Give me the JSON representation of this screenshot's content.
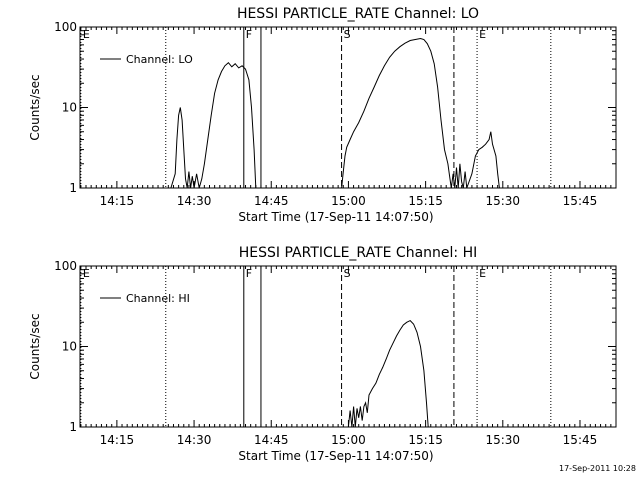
{
  "chart_data": [
    {
      "type": "line",
      "title": "HESSI PARTICLE_RATE Channel: LO",
      "xlabel": "Start Time (17-Sep-11 14:07:50)",
      "ylabel": "Counts/sec",
      "yscale": "log",
      "ylim": [
        1,
        100
      ],
      "xlim": [
        "14:07:50",
        "15:52:00"
      ],
      "xticks": [
        "14:15",
        "14:30",
        "14:45",
        "15:00",
        "15:15",
        "15:30",
        "15:45"
      ],
      "yticks": [
        "1",
        "10",
        "100"
      ],
      "grid": false,
      "legend": {
        "position": "top-left",
        "entries": [
          "Channel: LO"
        ]
      },
      "markers": [
        {
          "time": "14:08:00",
          "label": "E",
          "style": "dotted"
        },
        {
          "time": "14:24:30",
          "label": "",
          "style": "dotted"
        },
        {
          "time": "14:39:40",
          "label": "F",
          "style": "solid"
        },
        {
          "time": "14:43:00",
          "label": "",
          "style": "solid"
        },
        {
          "time": "14:58:40",
          "label": "S",
          "style": "dashed"
        },
        {
          "time": "15:20:30",
          "label": "",
          "style": "dashed"
        },
        {
          "time": "15:25:00",
          "label": "E",
          "style": "dotted"
        },
        {
          "time": "15:39:20",
          "label": "",
          "style": "dotted"
        }
      ],
      "series": [
        {
          "name": "Channel: LO",
          "segments": [
            [
              [
                "14:25:30",
                1
              ],
              [
                "14:26:20",
                1.5
              ],
              [
                "14:26:40",
                4
              ],
              [
                "14:27:00",
                8
              ],
              [
                "14:27:20",
                10
              ],
              [
                "14:27:40",
                7
              ],
              [
                "14:28:00",
                3
              ],
              [
                "14:28:20",
                1.3
              ],
              [
                "14:28:40",
                1
              ],
              [
                "14:29:00",
                1.6
              ],
              [
                "14:29:20",
                1
              ],
              [
                "14:29:40",
                1.4
              ],
              [
                "14:30:00",
                1
              ],
              [
                "14:30:30",
                1.5
              ],
              [
                "14:31:00",
                1
              ],
              [
                "14:31:30",
                1.3
              ],
              [
                "14:32:00",
                2
              ],
              [
                "14:32:40",
                4
              ],
              [
                "14:33:20",
                8
              ],
              [
                "14:34:00",
                15
              ],
              [
                "14:34:40",
                22
              ],
              [
                "14:35:20",
                28
              ],
              [
                "14:36:00",
                33
              ],
              [
                "14:36:40",
                36
              ],
              [
                "14:37:20",
                32
              ],
              [
                "14:38:00",
                35
              ],
              [
                "14:38:40",
                31
              ],
              [
                "14:39:20",
                33
              ],
              [
                "14:40:00",
                30
              ],
              [
                "14:40:40",
                22
              ],
              [
                "14:41:10",
                10
              ],
              [
                "14:41:40",
                3
              ],
              [
                "14:42:00",
                1
              ]
            ],
            [
              [
                "14:58:40",
                1
              ],
              [
                "14:59:00",
                1.6
              ],
              [
                "14:59:20",
                2.5
              ],
              [
                "14:59:40",
                3.2
              ],
              [
                "15:00:20",
                4
              ],
              [
                "15:01:00",
                5
              ],
              [
                "15:02:00",
                6.5
              ],
              [
                "15:03:00",
                9
              ],
              [
                "15:04:00",
                13
              ],
              [
                "15:05:00",
                18
              ],
              [
                "15:06:00",
                25
              ],
              [
                "15:07:00",
                33
              ],
              [
                "15:08:00",
                42
              ],
              [
                "15:09:00",
                50
              ],
              [
                "15:10:00",
                57
              ],
              [
                "15:11:00",
                63
              ],
              [
                "15:12:00",
                68
              ],
              [
                "15:13:00",
                70
              ],
              [
                "15:14:00",
                72
              ],
              [
                "15:14:40",
                70
              ],
              [
                "15:15:20",
                62
              ],
              [
                "15:16:00",
                50
              ],
              [
                "15:16:40",
                35
              ],
              [
                "15:17:20",
                18
              ],
              [
                "15:18:00",
                7
              ],
              [
                "15:18:40",
                3
              ],
              [
                "15:19:20",
                2
              ],
              [
                "15:19:40",
                1.4
              ],
              [
                "15:20:00",
                1
              ],
              [
                "15:20:20",
                1.5
              ],
              [
                "15:20:40",
                1
              ],
              [
                "15:21:00",
                1.8
              ],
              [
                "15:21:20",
                1
              ],
              [
                "15:21:40",
                2
              ],
              [
                "15:22:00",
                1.2
              ],
              [
                "15:22:20",
                1
              ],
              [
                "15:22:40",
                1.6
              ],
              [
                "15:23:00",
                1
              ],
              [
                "15:24:00",
                1.5
              ],
              [
                "15:24:40",
                2.5
              ],
              [
                "15:25:20",
                3
              ],
              [
                "15:26:00",
                3.2
              ],
              [
                "15:26:40",
                3.5
              ],
              [
                "15:27:20",
                4
              ],
              [
                "15:27:40",
                5
              ],
              [
                "15:28:00",
                3.5
              ],
              [
                "15:28:40",
                2.5
              ],
              [
                "15:29:00",
                1.5
              ],
              [
                "15:29:20",
                1
              ]
            ]
          ]
        }
      ]
    },
    {
      "type": "line",
      "title": "HESSI PARTICLE_RATE Channel: HI",
      "xlabel": "Start Time (17-Sep-11 14:07:50)",
      "ylabel": "Counts/sec",
      "yscale": "log",
      "ylim": [
        1,
        100
      ],
      "xlim": [
        "14:07:50",
        "15:52:00"
      ],
      "xticks": [
        "14:15",
        "14:30",
        "14:45",
        "15:00",
        "15:15",
        "15:30",
        "15:45"
      ],
      "yticks": [
        "1",
        "10",
        "100"
      ],
      "grid": false,
      "legend": {
        "position": "top-left",
        "entries": [
          "Channel: HI"
        ]
      },
      "markers": [
        {
          "time": "14:08:00",
          "label": "E",
          "style": "dotted"
        },
        {
          "time": "14:24:30",
          "label": "",
          "style": "dotted"
        },
        {
          "time": "14:39:40",
          "label": "F",
          "style": "solid"
        },
        {
          "time": "14:43:00",
          "label": "",
          "style": "solid"
        },
        {
          "time": "14:58:40",
          "label": "S",
          "style": "dashed"
        },
        {
          "time": "15:20:30",
          "label": "",
          "style": "dashed"
        },
        {
          "time": "15:25:00",
          "label": "E",
          "style": "dotted"
        },
        {
          "time": "15:39:20",
          "label": "",
          "style": "dotted"
        }
      ],
      "series": [
        {
          "name": "Channel: HI",
          "segments": [
            [
              [
                "15:00:00",
                1
              ],
              [
                "15:00:20",
                1.6
              ],
              [
                "15:00:40",
                1
              ],
              [
                "15:01:00",
                1.8
              ],
              [
                "15:01:20",
                1
              ],
              [
                "15:01:40",
                1.7
              ],
              [
                "15:02:00",
                1.3
              ],
              [
                "15:02:20",
                1.8
              ],
              [
                "15:02:40",
                1.2
              ],
              [
                "15:03:00",
                1.8
              ],
              [
                "15:03:20",
                2
              ],
              [
                "15:03:40",
                1.5
              ],
              [
                "15:04:00",
                2.5
              ],
              [
                "15:04:40",
                3
              ],
              [
                "15:05:20",
                3.5
              ],
              [
                "15:06:00",
                4.5
              ],
              [
                "15:06:40",
                5.5
              ],
              [
                "15:07:20",
                7
              ],
              [
                "15:08:00",
                9
              ],
              [
                "15:08:40",
                11
              ],
              [
                "15:09:20",
                13.5
              ],
              [
                "15:10:00",
                16
              ],
              [
                "15:10:40",
                18.5
              ],
              [
                "15:11:20",
                20
              ],
              [
                "15:12:00",
                21
              ],
              [
                "15:12:40",
                19
              ],
              [
                "15:13:20",
                15
              ],
              [
                "15:14:00",
                10
              ],
              [
                "15:14:40",
                5
              ],
              [
                "15:15:10",
                2
              ],
              [
                "15:15:30",
                1
              ]
            ]
          ]
        }
      ]
    }
  ],
  "footer": {
    "timestamp": "17-Sep-2011 10:28"
  }
}
